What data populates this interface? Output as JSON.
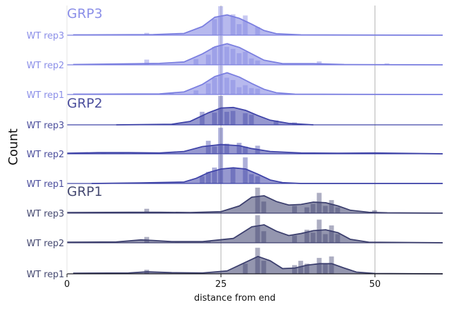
{
  "chart_data": {
    "type": "area",
    "xlabel": "distance from end",
    "ylabel": "Count",
    "xlim": [
      0,
      61
    ],
    "x_ticks": [
      0,
      25,
      50
    ],
    "x_gridlines": [
      25,
      50
    ],
    "groups": [
      {
        "name": "GRP3",
        "color": "#7b7fe0",
        "label_color": "#8a8ee8",
        "rows": [
          {
            "label": "WT rep3",
            "bars": [
              [
                13,
                0.08
              ],
              [
                24,
                0.55
              ],
              [
                25,
                1.0
              ],
              [
                27,
                0.72
              ],
              [
                28,
                0.38
              ],
              [
                29,
                0.68
              ],
              [
                31,
                0.28
              ]
            ],
            "kde": [
              [
                1,
                0.01
              ],
              [
                14,
                0.02
              ],
              [
                19,
                0.06
              ],
              [
                22,
                0.3
              ],
              [
                24,
                0.62
              ],
              [
                26,
                0.7
              ],
              [
                28,
                0.58
              ],
              [
                30,
                0.38
              ],
              [
                32,
                0.16
              ],
              [
                34,
                0.05
              ],
              [
                38,
                0.01
              ],
              [
                61,
                0.0
              ]
            ]
          },
          {
            "label": "WT rep2",
            "bars": [
              [
                13,
                0.18
              ],
              [
                21,
                0.2
              ],
              [
                23,
                0.35
              ],
              [
                24,
                0.62
              ],
              [
                25,
                1.0
              ],
              [
                26,
                0.62
              ],
              [
                27,
                0.55
              ],
              [
                28,
                0.4
              ],
              [
                29,
                0.45
              ],
              [
                30,
                0.22
              ],
              [
                31,
                0.15
              ],
              [
                41,
                0.12
              ],
              [
                52,
                0.05
              ]
            ],
            "kde": [
              [
                1,
                0.01
              ],
              [
                12,
                0.04
              ],
              [
                15,
                0.05
              ],
              [
                19,
                0.1
              ],
              [
                22,
                0.38
              ],
              [
                24,
                0.62
              ],
              [
                26,
                0.73
              ],
              [
                28,
                0.6
              ],
              [
                30,
                0.38
              ],
              [
                32,
                0.16
              ],
              [
                35,
                0.04
              ],
              [
                40,
                0.04
              ],
              [
                45,
                0.01
              ],
              [
                61,
                0.0
              ]
            ]
          },
          {
            "label": "WT rep1",
            "bars": [
              [
                17,
                0.06
              ],
              [
                21,
                0.14
              ],
              [
                23,
                0.38
              ],
              [
                24,
                0.58
              ],
              [
                25,
                1.0
              ],
              [
                26,
                0.58
              ],
              [
                27,
                0.5
              ],
              [
                28,
                0.25
              ],
              [
                29,
                0.32
              ],
              [
                30,
                0.22
              ],
              [
                31,
                0.2
              ]
            ],
            "kde": [
              [
                1,
                0.01
              ],
              [
                15,
                0.02
              ],
              [
                19,
                0.09
              ],
              [
                22,
                0.35
              ],
              [
                24,
                0.62
              ],
              [
                26,
                0.75
              ],
              [
                28,
                0.6
              ],
              [
                30,
                0.38
              ],
              [
                32,
                0.18
              ],
              [
                34,
                0.06
              ],
              [
                37,
                0.01
              ],
              [
                61,
                0.0
              ]
            ]
          }
        ]
      },
      {
        "name": "GRP2",
        "color": "#3f43a8",
        "label_color": "#4a4d9c",
        "rows": [
          {
            "label": "WT rep3",
            "bars": [
              [
                22,
                0.45
              ],
              [
                24,
                0.42
              ],
              [
                25,
                1.0
              ],
              [
                26,
                0.45
              ],
              [
                27,
                0.48
              ],
              [
                29,
                0.4
              ],
              [
                30,
                0.35
              ],
              [
                34,
                0.15
              ],
              [
                37,
                0.08
              ]
            ],
            "kde": [
              [
                8,
                0.0
              ],
              [
                17,
                0.02
              ],
              [
                20,
                0.12
              ],
              [
                23,
                0.42
              ],
              [
                25,
                0.58
              ],
              [
                27,
                0.6
              ],
              [
                29,
                0.5
              ],
              [
                31,
                0.32
              ],
              [
                33,
                0.16
              ],
              [
                36,
                0.05
              ],
              [
                40,
                0.0
              ]
            ]
          },
          {
            "label": "WT rep2",
            "bars": [
              [
                6,
                0.04
              ],
              [
                9,
                0.04
              ],
              [
                11,
                0.05
              ],
              [
                23,
                0.45
              ],
              [
                24,
                0.25
              ],
              [
                25,
                0.9
              ],
              [
                26,
                0.35
              ],
              [
                28,
                0.38
              ],
              [
                29,
                0.25
              ],
              [
                31,
                0.28
              ],
              [
                49,
                0.03
              ]
            ],
            "kde": [
              [
                0,
                0.02
              ],
              [
                5,
                0.04
              ],
              [
                10,
                0.04
              ],
              [
                15,
                0.03
              ],
              [
                19,
                0.08
              ],
              [
                22,
                0.25
              ],
              [
                25,
                0.32
              ],
              [
                28,
                0.28
              ],
              [
                30,
                0.18
              ],
              [
                33,
                0.08
              ],
              [
                38,
                0.03
              ],
              [
                44,
                0.02
              ],
              [
                50,
                0.03
              ],
              [
                61,
                0.0
              ]
            ]
          },
          {
            "label": "WT rep1",
            "bars": [
              [
                22,
                0.25
              ],
              [
                23,
                0.4
              ],
              [
                24,
                0.55
              ],
              [
                25,
                1.0
              ],
              [
                27,
                0.55
              ],
              [
                29,
                0.9
              ],
              [
                30,
                0.32
              ],
              [
                31,
                0.25
              ]
            ],
            "kde": [
              [
                4,
                0.0
              ],
              [
                12,
                0.02
              ],
              [
                19,
                0.05
              ],
              [
                21,
                0.18
              ],
              [
                23,
                0.38
              ],
              [
                25,
                0.5
              ],
              [
                27,
                0.54
              ],
              [
                29,
                0.5
              ],
              [
                31,
                0.32
              ],
              [
                33,
                0.12
              ],
              [
                35,
                0.03
              ],
              [
                38,
                0.0
              ],
              [
                61,
                0.0
              ]
            ]
          }
        ]
      },
      {
        "name": "GRP1",
        "color": "#3c3f6e",
        "label_color": "#444870",
        "rows": [
          {
            "label": "WT rep3",
            "bars": [
              [
                13,
                0.15
              ],
              [
                31,
                0.88
              ],
              [
                32,
                0.4
              ],
              [
                37,
                0.25
              ],
              [
                39,
                0.2
              ],
              [
                40,
                0.32
              ],
              [
                41,
                0.7
              ],
              [
                42,
                0.25
              ],
              [
                43,
                0.45
              ],
              [
                44,
                0.2
              ],
              [
                50,
                0.1
              ]
            ],
            "kde": [
              [
                0,
                0.02
              ],
              [
                10,
                0.03
              ],
              [
                15,
                0.03
              ],
              [
                20,
                0.02
              ],
              [
                25,
                0.05
              ],
              [
                28,
                0.25
              ],
              [
                30,
                0.55
              ],
              [
                32,
                0.6
              ],
              [
                34,
                0.4
              ],
              [
                36,
                0.28
              ],
              [
                38,
                0.3
              ],
              [
                40,
                0.38
              ],
              [
                42,
                0.36
              ],
              [
                44,
                0.25
              ],
              [
                46,
                0.1
              ],
              [
                49,
                0.03
              ],
              [
                52,
                0.01
              ],
              [
                61,
                0.0
              ]
            ]
          },
          {
            "label": "WT rep2",
            "bars": [
              [
                7,
                0.04
              ],
              [
                13,
                0.2
              ],
              [
                18,
                0.06
              ],
              [
                23,
                0.06
              ],
              [
                31,
                0.95
              ],
              [
                32,
                0.4
              ],
              [
                37,
                0.25
              ],
              [
                39,
                0.45
              ],
              [
                40,
                0.35
              ],
              [
                41,
                0.8
              ],
              [
                42,
                0.3
              ],
              [
                43,
                0.6
              ],
              [
                44,
                0.3
              ]
            ],
            "kde": [
              [
                0,
                0.02
              ],
              [
                8,
                0.03
              ],
              [
                12,
                0.1
              ],
              [
                14,
                0.08
              ],
              [
                17,
                0.04
              ],
              [
                22,
                0.04
              ],
              [
                27,
                0.15
              ],
              [
                30,
                0.55
              ],
              [
                32,
                0.62
              ],
              [
                34,
                0.4
              ],
              [
                36,
                0.25
              ],
              [
                38,
                0.32
              ],
              [
                40,
                0.42
              ],
              [
                42,
                0.45
              ],
              [
                44,
                0.35
              ],
              [
                46,
                0.12
              ],
              [
                49,
                0.02
              ],
              [
                61,
                0.0
              ]
            ]
          },
          {
            "label": "WT rep1",
            "bars": [
              [
                13,
                0.14
              ],
              [
                29,
                0.35
              ],
              [
                31,
                0.9
              ],
              [
                32,
                0.45
              ],
              [
                37,
                0.3
              ],
              [
                38,
                0.45
              ],
              [
                39,
                0.35
              ],
              [
                41,
                0.55
              ],
              [
                42,
                0.35
              ],
              [
                43,
                0.6
              ]
            ],
            "kde": [
              [
                1,
                0.02
              ],
              [
                10,
                0.03
              ],
              [
                13,
                0.07
              ],
              [
                17,
                0.04
              ],
              [
                22,
                0.03
              ],
              [
                26,
                0.1
              ],
              [
                29,
                0.4
              ],
              [
                31,
                0.6
              ],
              [
                33,
                0.45
              ],
              [
                35,
                0.18
              ],
              [
                37,
                0.2
              ],
              [
                39,
                0.3
              ],
              [
                41,
                0.35
              ],
              [
                43,
                0.35
              ],
              [
                45,
                0.2
              ],
              [
                47,
                0.06
              ],
              [
                50,
                0.01
              ],
              [
                61,
                0.0
              ]
            ]
          }
        ]
      }
    ]
  }
}
